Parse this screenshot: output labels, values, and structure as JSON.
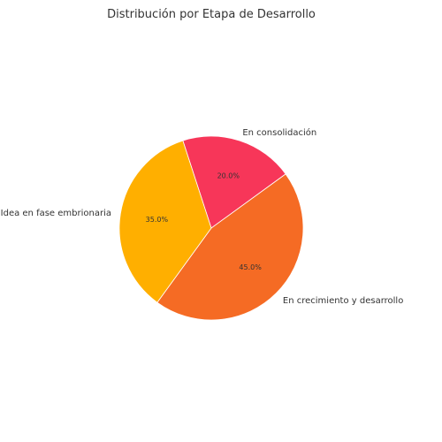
{
  "chart_data": {
    "type": "pie",
    "title": "Distribución por Etapa de Desarrollo",
    "slices": [
      {
        "label": "En consolidación",
        "value": 20.0,
        "pct_label": "20.0%",
        "color": "#F73659"
      },
      {
        "label": "En crecimiento y desarrollo",
        "value": 45.0,
        "pct_label": "45.0%",
        "color": "#F56B24"
      },
      {
        "label": "Idea en fase embrionaria",
        "value": 35.0,
        "pct_label": "35.0%",
        "color": "#FFAF00"
      }
    ],
    "start_angle_deg": 108,
    "direction": "clockwise"
  }
}
